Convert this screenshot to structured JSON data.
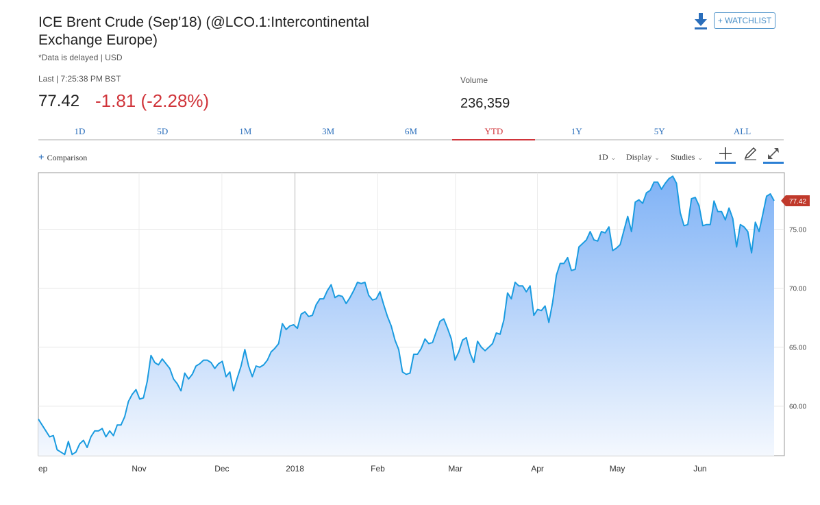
{
  "header": {
    "title": "ICE Brent Crude (Sep'18) (@LCO.1:Intercontinental Exchange Europe)",
    "subtitle": "*Data is delayed | USD",
    "watchlist_label": "+ WATCHLIST",
    "download_icon": "download-icon"
  },
  "quote": {
    "last_label": "Last | 7:25:38 PM BST",
    "price": "77.42",
    "change": "-1.81 (-2.28%)",
    "volume_label": "Volume",
    "volume": "236,359",
    "change_color": "#d0343a"
  },
  "tabs": [
    {
      "label": "1D"
    },
    {
      "label": "5D"
    },
    {
      "label": "1M"
    },
    {
      "label": "3M"
    },
    {
      "label": "6M"
    },
    {
      "label": "YTD",
      "active": true
    },
    {
      "label": "1Y"
    },
    {
      "label": "5Y"
    },
    {
      "label": "ALL"
    }
  ],
  "toolbar": {
    "comparison_label": "Comparison",
    "interval_label": "1D",
    "display_label": "Display",
    "studies_label": "Studies",
    "icons": [
      "crosshair-icon",
      "pencil-icon",
      "expand-icon"
    ]
  },
  "chart_data": {
    "type": "area",
    "ylim": [
      55.8,
      79.8
    ],
    "yticks": [
      60,
      65,
      70,
      75
    ],
    "ytick_labels": [
      "60.00",
      "65.00",
      "70.00",
      "75.00"
    ],
    "xtick_labels": [
      "ep",
      "Nov",
      "Dec",
      "2018",
      "Feb",
      "Mar",
      "Apr",
      "May",
      "Jun"
    ],
    "last_value_label": "77.42",
    "line_color": "#1a9be0",
    "fill_top_color": "#7fb2f6",
    "fill_bottom_color": "#f4f8fe",
    "marker_color": "#c0392b",
    "grid": true,
    "values": [
      58.9,
      58.4,
      57.9,
      57.4,
      57.5,
      56.3,
      56.1,
      55.9,
      57.0,
      55.9,
      56.1,
      56.8,
      57.1,
      56.5,
      57.4,
      57.9,
      57.9,
      58.1,
      57.4,
      57.9,
      57.5,
      58.4,
      58.4,
      59.1,
      60.4,
      61.0,
      61.4,
      60.6,
      60.7,
      62.1,
      64.3,
      63.7,
      63.5,
      64.0,
      63.6,
      63.2,
      62.3,
      61.9,
      61.3,
      62.8,
      62.3,
      62.7,
      63.4,
      63.6,
      63.9,
      63.9,
      63.7,
      63.2,
      63.6,
      63.8,
      62.5,
      62.9,
      61.3,
      62.4,
      63.4,
      64.8,
      63.4,
      62.5,
      63.4,
      63.3,
      63.5,
      63.9,
      64.6,
      64.9,
      65.3,
      67.0,
      66.5,
      66.8,
      66.9,
      66.6,
      67.8,
      68.0,
      67.6,
      67.7,
      68.6,
      69.1,
      69.1,
      69.8,
      70.3,
      69.2,
      69.4,
      69.3,
      68.7,
      69.2,
      69.8,
      70.5,
      70.4,
      70.5,
      69.4,
      69.0,
      69.1,
      69.7,
      68.6,
      67.6,
      66.8,
      65.6,
      64.8,
      62.9,
      62.7,
      62.8,
      64.4,
      64.4,
      64.9,
      65.7,
      65.3,
      65.4,
      66.3,
      67.2,
      67.4,
      66.6,
      65.7,
      63.9,
      64.6,
      65.6,
      65.8,
      64.5,
      63.7,
      65.5,
      65.0,
      64.7,
      65.0,
      65.3,
      66.2,
      66.1,
      67.3,
      69.6,
      69.1,
      70.5,
      70.2,
      70.2,
      69.7,
      70.2,
      67.7,
      68.2,
      68.1,
      68.5,
      67.1,
      68.8,
      71.1,
      72.1,
      72.1,
      72.6,
      71.5,
      71.6,
      73.5,
      73.8,
      74.1,
      74.8,
      74.1,
      74.0,
      74.8,
      74.7,
      75.2,
      73.2,
      73.4,
      73.7,
      74.9,
      76.1,
      74.8,
      77.3,
      77.5,
      77.2,
      78.1,
      78.3,
      79.0,
      79.0,
      78.4,
      78.9,
      79.3,
      79.5,
      78.9,
      76.4,
      75.3,
      75.4,
      77.6,
      77.7,
      77.0,
      75.3,
      75.4,
      75.4,
      77.4,
      76.5,
      76.5,
      75.8,
      76.8,
      75.9,
      73.5,
      75.4,
      75.2,
      74.8,
      73.0,
      75.6,
      74.8,
      76.3,
      77.8,
      78.0,
      77.42
    ]
  }
}
